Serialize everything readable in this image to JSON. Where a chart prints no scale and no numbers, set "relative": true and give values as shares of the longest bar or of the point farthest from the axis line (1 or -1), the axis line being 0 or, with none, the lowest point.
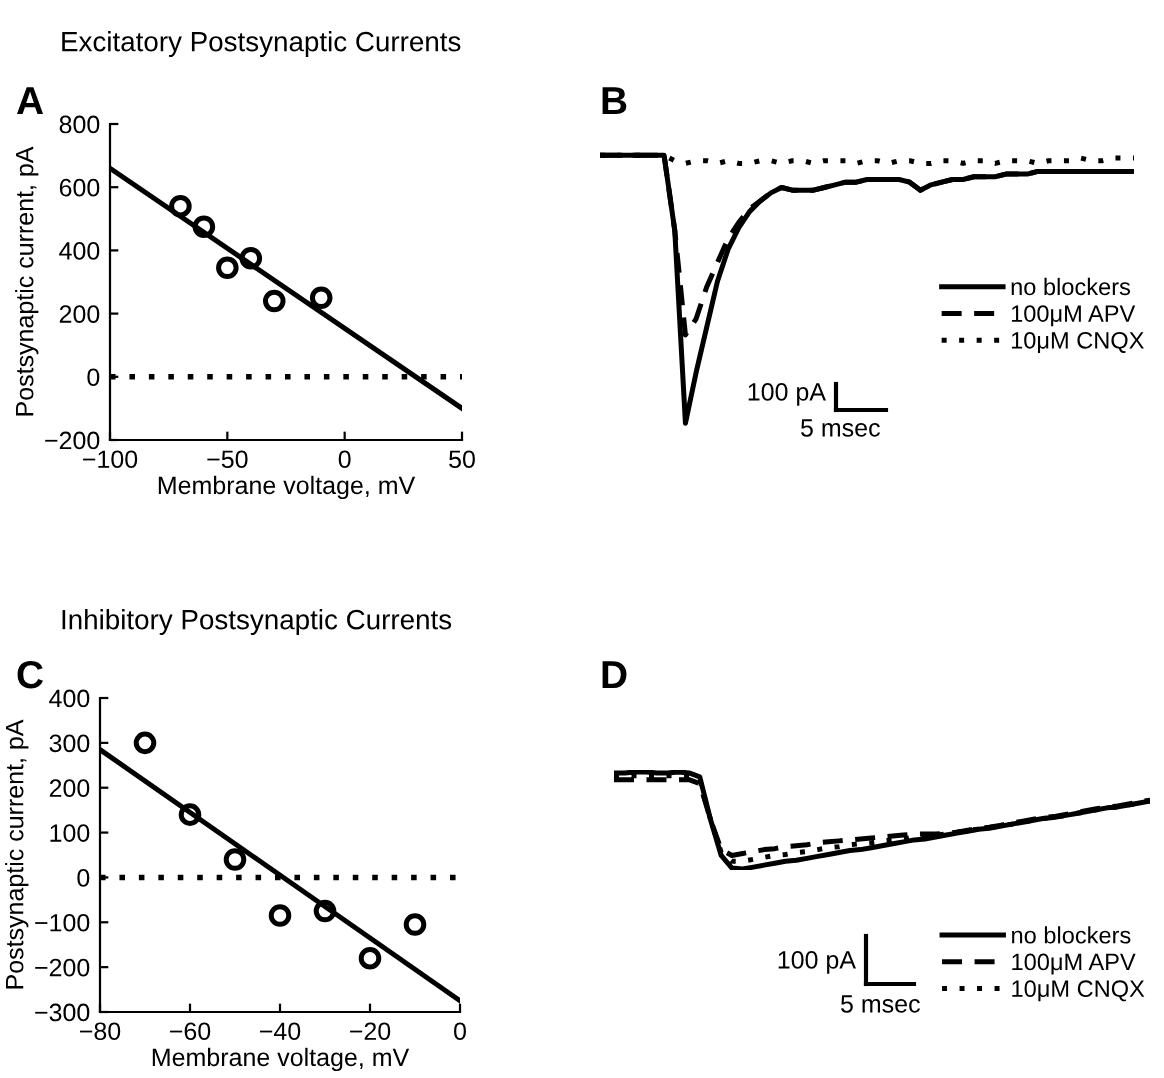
{
  "chart_data": [
    {
      "type": "scatter",
      "title": "Excitatory Postsynaptic Currents",
      "xlabel": "Membrane voltage, mV",
      "ylabel": "Postsynaptic current, pA",
      "annotations": [
        "A"
      ],
      "xlim": [
        -100,
        50
      ],
      "ylim": [
        -200,
        800
      ],
      "xticks": [
        -100,
        -50,
        0,
        50
      ],
      "yticks": [
        -200,
        0,
        200,
        400,
        600,
        800
      ],
      "grid": false,
      "legend": false,
      "ref_lines": [
        {
          "axis": "y",
          "value": 0,
          "color": "#000000",
          "line_style": "dotted"
        }
      ],
      "series": [
        {
          "type": "scatter",
          "color": "#000000",
          "marker": "circle",
          "x": [
            -70,
            -60,
            -50,
            -40,
            -30,
            -10
          ],
          "values": [
            540,
            475,
            345,
            375,
            240,
            250
          ]
        },
        {
          "type": "line",
          "color": "#000000",
          "line_style": "solid",
          "x": [
            -100,
            50
          ],
          "values": [
            660,
            -100
          ]
        }
      ]
    },
    {
      "type": "line",
      "relative": true,
      "annotations": [
        "B",
        "100 pA",
        "5 msec"
      ],
      "legend": "right",
      "grid": false,
      "categories": [
        null,
        null,
        null,
        null,
        null,
        null,
        null,
        null,
        null,
        null,
        null,
        null,
        null,
        null,
        null,
        null,
        null,
        null,
        null,
        null,
        null,
        null,
        null,
        null,
        null,
        null,
        null,
        null,
        null,
        null,
        null,
        null,
        null,
        null,
        null,
        null,
        null,
        null,
        null,
        null,
        null,
        null,
        null,
        null,
        null,
        null,
        null,
        null,
        null,
        null,
        null
      ],
      "series": [
        {
          "name": "no blockers",
          "color": "#000000",
          "line_style": "solid",
          "values": [
            1.0,
            1.0,
            1.0,
            1.0,
            1.0,
            1.0,
            1.0,
            0.72,
            0,
            0.19,
            0.36,
            0.53,
            0.65,
            0.73,
            0.79,
            0.83,
            0.86,
            0.88,
            0.87,
            0.87,
            0.87,
            0.88,
            0.89,
            0.9,
            0.9,
            0.91,
            0.91,
            0.91,
            0.91,
            0.9,
            0.87,
            0.89,
            0.9,
            0.91,
            0.91,
            0.92,
            0.92,
            0.92,
            0.93,
            0.93,
            0.93,
            0.94,
            0.94,
            0.94,
            0.94,
            0.94,
            0.94,
            0.94,
            0.94,
            0.94,
            0.94
          ]
        },
        {
          "name": "100μM APV",
          "color": "#000000",
          "line_style": "dashed",
          "values": [
            1.0,
            1.0,
            1.0,
            1.0,
            1.0,
            1.0,
            1.0,
            0.72,
            0.33,
            0.39,
            0.51,
            0.6,
            0.69,
            0.75,
            0.8,
            0.83,
            0.86,
            0.88,
            0.87,
            0.87,
            0.87,
            0.88,
            0.89,
            0.9,
            0.9,
            0.91,
            0.91,
            0.91,
            0.91,
            0.9,
            0.87,
            0.89,
            0.9,
            0.91,
            0.91,
            0.92,
            0.92,
            0.92,
            0.93,
            0.93,
            0.93,
            0.94,
            0.94,
            0.94,
            0.94,
            0.94,
            0.94,
            0.94,
            0.94,
            0.94,
            0.94
          ]
        },
        {
          "name": "10μM CNQX",
          "color": "#000000",
          "line_style": "dotted",
          "values": [
            1.0,
            1.0,
            1.0,
            1.0,
            1.0,
            1.0,
            1.0,
            0.98,
            0.97,
            0.98,
            0.98,
            0.97,
            0.98,
            0.97,
            0.97,
            0.98,
            0.98,
            0.97,
            0.98,
            0.98,
            0.97,
            0.98,
            0.98,
            0.98,
            0.97,
            0.98,
            0.98,
            0.97,
            0.98,
            0.98,
            0.97,
            0.97,
            0.98,
            0.98,
            0.97,
            0.98,
            0.98,
            0.97,
            0.98,
            0.98,
            0.98,
            0.97,
            0.98,
            0.98,
            0.98,
            0.99,
            0.98,
            0.98,
            0.99,
            0.99,
            0.99
          ]
        }
      ]
    },
    {
      "type": "scatter",
      "title": "Inhibitory Postsynaptic Currents",
      "xlabel": "Membrane voltage, mV",
      "ylabel": "Postsynaptic current, pA",
      "annotations": [
        "C"
      ],
      "xlim": [
        -80,
        0
      ],
      "ylim": [
        -300,
        400
      ],
      "xticks": [
        -80,
        -60,
        -40,
        -20,
        0
      ],
      "yticks": [
        -300,
        -200,
        -100,
        0,
        100,
        200,
        300,
        400
      ],
      "grid": false,
      "legend": false,
      "ref_lines": [
        {
          "axis": "y",
          "value": 0,
          "color": "#000000",
          "line_style": "dotted"
        }
      ],
      "series": [
        {
          "type": "scatter",
          "color": "#000000",
          "marker": "circle",
          "x": [
            -70,
            -60,
            -50,
            -40,
            -30,
            -20,
            -10
          ],
          "values": [
            300,
            140,
            40,
            -85,
            -75,
            -180,
            -105
          ]
        },
        {
          "type": "line",
          "color": "#000000",
          "line_style": "solid",
          "x": [
            -80,
            0
          ],
          "values": [
            285,
            -275
          ]
        }
      ]
    },
    {
      "type": "line",
      "relative": true,
      "annotations": [
        "D",
        "100 pA",
        "5 msec"
      ],
      "legend": "bottom right",
      "grid": false,
      "categories": [
        null,
        null,
        null,
        null,
        null,
        null,
        null,
        null,
        null,
        null,
        null,
        null,
        null,
        null,
        null,
        null,
        null,
        null,
        null,
        null,
        null,
        null,
        null,
        null,
        null,
        null,
        null,
        null,
        null,
        null,
        null,
        null,
        null,
        null,
        null,
        null,
        null,
        null,
        null,
        null,
        null,
        null,
        null,
        null,
        null,
        null,
        null,
        null,
        null,
        null,
        null
      ],
      "series": [
        {
          "name": "no blockers",
          "color": "#000000",
          "line_style": "solid",
          "values": [
            0.99,
            0.99,
            1.0,
            1.0,
            0.99,
            0.99,
            1.0,
            0.99,
            0.95,
            0.51,
            0.14,
            0.01,
            0,
            0.02,
            0.04,
            0.06,
            0.08,
            0.09,
            0.11,
            0.13,
            0.15,
            0.17,
            0.19,
            0.2,
            0.22,
            0.24,
            0.26,
            0.28,
            0.3,
            0.31,
            0.33,
            0.35,
            0.37,
            0.39,
            0.41,
            0.42,
            0.44,
            0.46,
            0.48,
            0.5,
            0.52,
            0.53,
            0.55,
            0.57,
            0.59,
            0.61,
            0.63,
            0.64,
            0.66,
            0.68,
            0.7
          ]
        },
        {
          "name": "100μM APV",
          "color": "#000000",
          "line_style": "dashed",
          "values": [
            0.92,
            0.92,
            0.92,
            0.92,
            0.92,
            0.92,
            0.92,
            0.92,
            0.88,
            0.51,
            0.2,
            0.14,
            0.16,
            0.18,
            0.2,
            0.21,
            0.23,
            0.24,
            0.25,
            0.27,
            0.28,
            0.29,
            0.3,
            0.31,
            0.32,
            0.33,
            0.34,
            0.35,
            0.36,
            0.36,
            0.36,
            0.37,
            0.38,
            0.4,
            0.42,
            0.43,
            0.45,
            0.47,
            0.49,
            0.51,
            0.53,
            0.54,
            0.56,
            0.58,
            0.6,
            0.62,
            0.64,
            0.65,
            0.67,
            0.69,
            0.71
          ]
        },
        {
          "name": "10μM CNQX",
          "color": "#000000",
          "line_style": "dotted",
          "values": [
            0.96,
            0.96,
            0.96,
            0.96,
            0.96,
            0.96,
            0.96,
            0.96,
            0.92,
            0.51,
            0.17,
            0.08,
            0.08,
            0.1,
            0.12,
            0.14,
            0.15,
            0.17,
            0.18,
            0.2,
            0.22,
            0.23,
            0.25,
            0.26,
            0.27,
            0.29,
            0.3,
            0.31,
            0.33,
            0.34,
            0.35,
            0.36,
            0.38,
            0.4,
            0.41,
            0.43,
            0.44,
            0.46,
            0.48,
            0.5,
            0.52,
            0.53,
            0.55,
            0.57,
            0.59,
            0.61,
            0.63,
            0.64,
            0.66,
            0.68,
            0.7
          ]
        }
      ]
    }
  ]
}
